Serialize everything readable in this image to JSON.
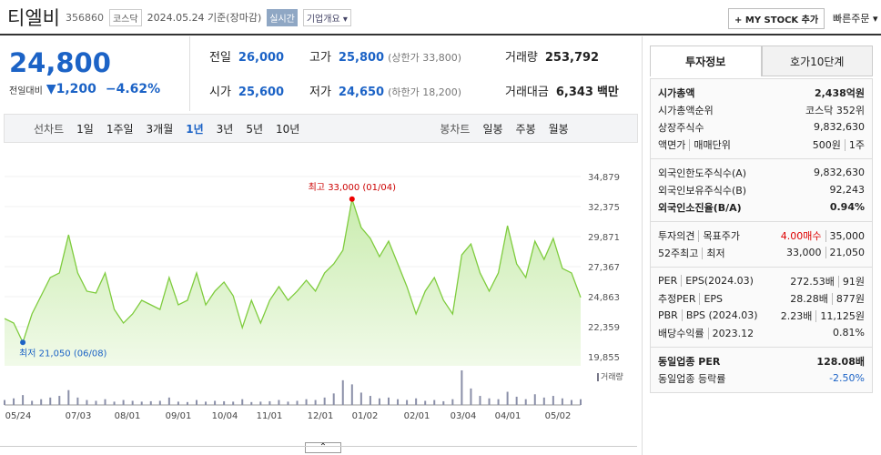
{
  "header": {
    "name": "티엘비",
    "code": "356860",
    "market": "코스닥",
    "date": "2024.05.24 기준(장마감)",
    "realtime": "실시간",
    "overview": "기업개요",
    "mystock": "MY STOCK 추가",
    "quick_order": "빠른주문"
  },
  "price": {
    "current": "24,800",
    "change_label": "전일대비",
    "change": "1,200",
    "rate": "−4.62%"
  },
  "summary": {
    "rows": [
      [
        {
          "label": "전일",
          "value": "26,000"
        },
        {
          "label": "고가",
          "value": "25,800",
          "extra": "(상한가 33,800)"
        },
        {
          "label": "거래량",
          "value": "253,792"
        }
      ],
      [
        {
          "label": "시가",
          "value": "25,600"
        },
        {
          "label": "저가",
          "value": "24,650",
          "extra": "(하한가 18,200)"
        },
        {
          "label": "거래대금",
          "value": "6,343",
          "extra": "백만"
        }
      ]
    ]
  },
  "tabs": {
    "line_label": "선차트",
    "periods": [
      "1일",
      "1주일",
      "3개월",
      "1년",
      "3년",
      "5년",
      "10년"
    ],
    "candle_label": "봉차트",
    "candles": [
      "일봉",
      "주봉",
      "월봉"
    ]
  },
  "chart": {
    "type": "line",
    "ylim": [
      19855,
      34879
    ],
    "yticks": [
      {
        "value": 34879,
        "label": "34,879"
      },
      {
        "value": 32375,
        "label": "32,375"
      },
      {
        "value": 29871,
        "label": "29,871"
      },
      {
        "value": 27367,
        "label": "27,367"
      },
      {
        "value": 24863,
        "label": "24,863"
      },
      {
        "value": 22359,
        "label": "22,359"
      },
      {
        "value": 19855,
        "label": "19,855"
      }
    ],
    "xlabels": [
      "05/24",
      "07/03",
      "08/01",
      "09/01",
      "10/04",
      "11/01",
      "12/01",
      "01/02",
      "02/01",
      "03/04",
      "04/01",
      "05/02"
    ],
    "values": [
      23040,
      22660,
      21050,
      23420,
      24940,
      26460,
      26840,
      30020,
      26840,
      25320,
      25170,
      26840,
      23800,
      22660,
      23420,
      24560,
      24180,
      23800,
      26460,
      24180,
      24560,
      26840,
      24180,
      25320,
      26080,
      24940,
      22280,
      24560,
      22660,
      24560,
      25700,
      24560,
      25320,
      26230,
      25320,
      26840,
      27600,
      28730,
      33000,
      30630,
      29720,
      28200,
      29490,
      27600,
      25700,
      23420,
      25320,
      26460,
      24560,
      23420,
      28350,
      29260,
      26840,
      25320,
      26840,
      30780,
      27600,
      26460,
      29490,
      27970,
      29720,
      27220,
      26840,
      24800
    ],
    "volume": [
      60000,
      80000,
      120000,
      50000,
      70000,
      90000,
      110000,
      180000,
      90000,
      60000,
      50000,
      70000,
      40000,
      60000,
      50000,
      40000,
      45000,
      50000,
      90000,
      40000,
      35000,
      60000,
      40000,
      50000,
      45000,
      40000,
      70000,
      35000,
      40000,
      45000,
      60000,
      40000,
      50000,
      70000,
      60000,
      90000,
      140000,
      300000,
      250000,
      150000,
      110000,
      80000,
      90000,
      70000,
      60000,
      80000,
      50000,
      60000,
      45000,
      70000,
      420000,
      200000,
      110000,
      80000,
      70000,
      160000,
      100000,
      70000,
      130000,
      90000,
      110000,
      80000,
      60000,
      70000
    ],
    "high_label": "최고 33,000 (01/04)",
    "low_label": "최저 21,050 (06/08)",
    "volume_label": "거래량"
  },
  "side": {
    "tabs": [
      "투자정보",
      "호가10단계"
    ],
    "sections": [
      [
        {
          "label": [
            "시가총액"
          ],
          "value": [
            "2,438억원"
          ],
          "bold": true
        },
        {
          "label": [
            "시가총액순위"
          ],
          "value": [
            "코스닥 352위"
          ]
        },
        {
          "label": [
            "상장주식수"
          ],
          "value": [
            "9,832,630"
          ]
        },
        {
          "label": [
            "액면가",
            "매매단위"
          ],
          "value": [
            "500원",
            "1주"
          ]
        }
      ],
      [
        {
          "label": [
            "외국인한도주식수(A)"
          ],
          "value": [
            "9,832,630"
          ]
        },
        {
          "label": [
            "외국인보유주식수(B)"
          ],
          "value": [
            "92,243"
          ]
        },
        {
          "label": [
            "외국인소진율(B/A)"
          ],
          "value": [
            "0.94%"
          ],
          "bold": true
        }
      ],
      [
        {
          "label": [
            "투자의견",
            "목표주가"
          ],
          "value": [
            "4.00매수",
            "35,000"
          ],
          "red": true
        },
        {
          "label": [
            "52주최고",
            "최저"
          ],
          "value": [
            "33,000",
            "21,050"
          ]
        }
      ],
      [
        {
          "label": [
            "PER",
            "EPS(2024.03)"
          ],
          "value": [
            "272.53배",
            "91원"
          ]
        },
        {
          "label": [
            "추정PER",
            "EPS"
          ],
          "value": [
            "28.28배",
            "877원"
          ]
        },
        {
          "label": [
            "PBR",
            "BPS (2024.03)"
          ],
          "value": [
            "2.23배",
            "11,125원"
          ]
        },
        {
          "label": [
            "배당수익률",
            "2023.12"
          ],
          "value": [
            "0.81%"
          ]
        }
      ],
      [
        {
          "label": [
            "동일업종 PER"
          ],
          "value": [
            "128.08배"
          ],
          "bold": true
        },
        {
          "label": [
            "동일업종 등락률"
          ],
          "value": [
            "-2.50%"
          ],
          "blue": true
        }
      ]
    ]
  }
}
